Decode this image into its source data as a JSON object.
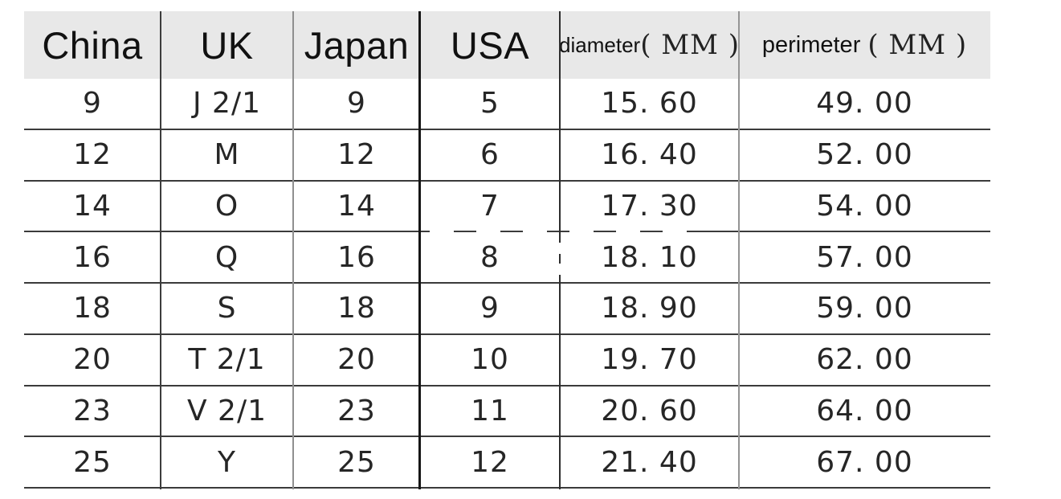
{
  "table": {
    "headers": [
      {
        "label": "China"
      },
      {
        "label": "UK"
      },
      {
        "label": "Japan"
      },
      {
        "label": "USA"
      },
      {
        "label": "diameter",
        "unit": "( MM )"
      },
      {
        "label": "perimeter",
        "unit": "( MM )"
      }
    ],
    "rows": [
      {
        "china": "9",
        "uk": "J 2/1",
        "japan": "9",
        "usa": "5",
        "diameter": "15. 60",
        "perimeter": "49. 00"
      },
      {
        "china": "12",
        "uk": "M",
        "japan": "12",
        "usa": "6",
        "diameter": "16. 40",
        "perimeter": "52. 00"
      },
      {
        "china": "14",
        "uk": "O",
        "japan": "14",
        "usa": "7",
        "diameter": "17. 30",
        "perimeter": "54. 00"
      },
      {
        "china": "16",
        "uk": "Q",
        "japan": "16",
        "usa": "8",
        "diameter": "18. 10",
        "perimeter": "57. 00"
      },
      {
        "china": "18",
        "uk": "S",
        "japan": "18",
        "usa": "9",
        "diameter": "18. 90",
        "perimeter": "59. 00"
      },
      {
        "china": "20",
        "uk": "T 2/1",
        "japan": "20",
        "usa": "10",
        "diameter": "19. 70",
        "perimeter": "62. 00"
      },
      {
        "china": "23",
        "uk": "V 2/1",
        "japan": "23",
        "usa": "11",
        "diameter": "20. 60",
        "perimeter": "64. 00"
      },
      {
        "china": "25",
        "uk": "Y",
        "japan": "25",
        "usa": "12",
        "diameter": "21. 40",
        "perimeter": "67. 00"
      }
    ],
    "colors": {
      "header_background": "#e8e8e8",
      "grid_line_dark": "#1c1c1c",
      "grid_line_medium": "#3b3b3b",
      "grid_line_light": "#8f8f8f",
      "text": "#262626"
    }
  },
  "chart_data": {
    "type": "table",
    "columns": [
      "China",
      "UK",
      "Japan",
      "USA",
      "diameter(MM)",
      "perimeter(MM)"
    ],
    "rows": [
      [
        "9",
        "J 2/1",
        "9",
        "5",
        15.6,
        49.0
      ],
      [
        "12",
        "M",
        "12",
        "6",
        16.4,
        52.0
      ],
      [
        "14",
        "O",
        "14",
        "7",
        17.3,
        54.0
      ],
      [
        "16",
        "Q",
        "16",
        "8",
        18.1,
        57.0
      ],
      [
        "18",
        "S",
        "18",
        "9",
        18.9,
        59.0
      ],
      [
        "20",
        "T 2/1",
        "20",
        "10",
        19.7,
        62.0
      ],
      [
        "23",
        "V 2/1",
        "23",
        "11",
        20.6,
        64.0
      ],
      [
        "25",
        "Y",
        "25",
        "12",
        21.4,
        67.0
      ]
    ]
  }
}
